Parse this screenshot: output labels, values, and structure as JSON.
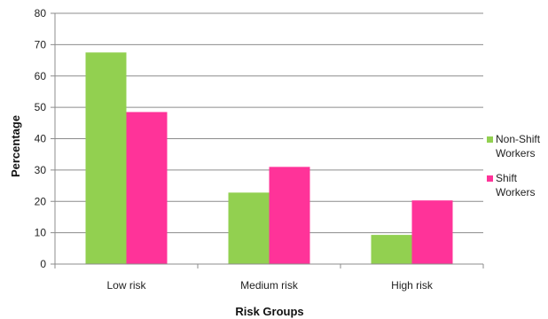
{
  "chart_data": {
    "type": "bar",
    "categories": [
      "Low risk",
      "Medium risk",
      "High risk"
    ],
    "series": [
      {
        "name": "Non-Shift Workers",
        "name_lines": [
          "Non-Shift",
          "Workers"
        ],
        "values": [
          67.5,
          22.8,
          9.3
        ],
        "color": "#92d050"
      },
      {
        "name": "Shift Workers",
        "name_lines": [
          "Shift",
          "Workers"
        ],
        "values": [
          48.5,
          31.0,
          20.3
        ],
        "color": "#ff3399"
      }
    ],
    "xlabel": "Risk Groups",
    "ylabel": "Percentage",
    "ylim": [
      0,
      80
    ],
    "yticks": [
      0,
      10,
      20,
      30,
      40,
      50,
      60,
      70,
      80
    ],
    "grid": true,
    "legend": "right"
  }
}
